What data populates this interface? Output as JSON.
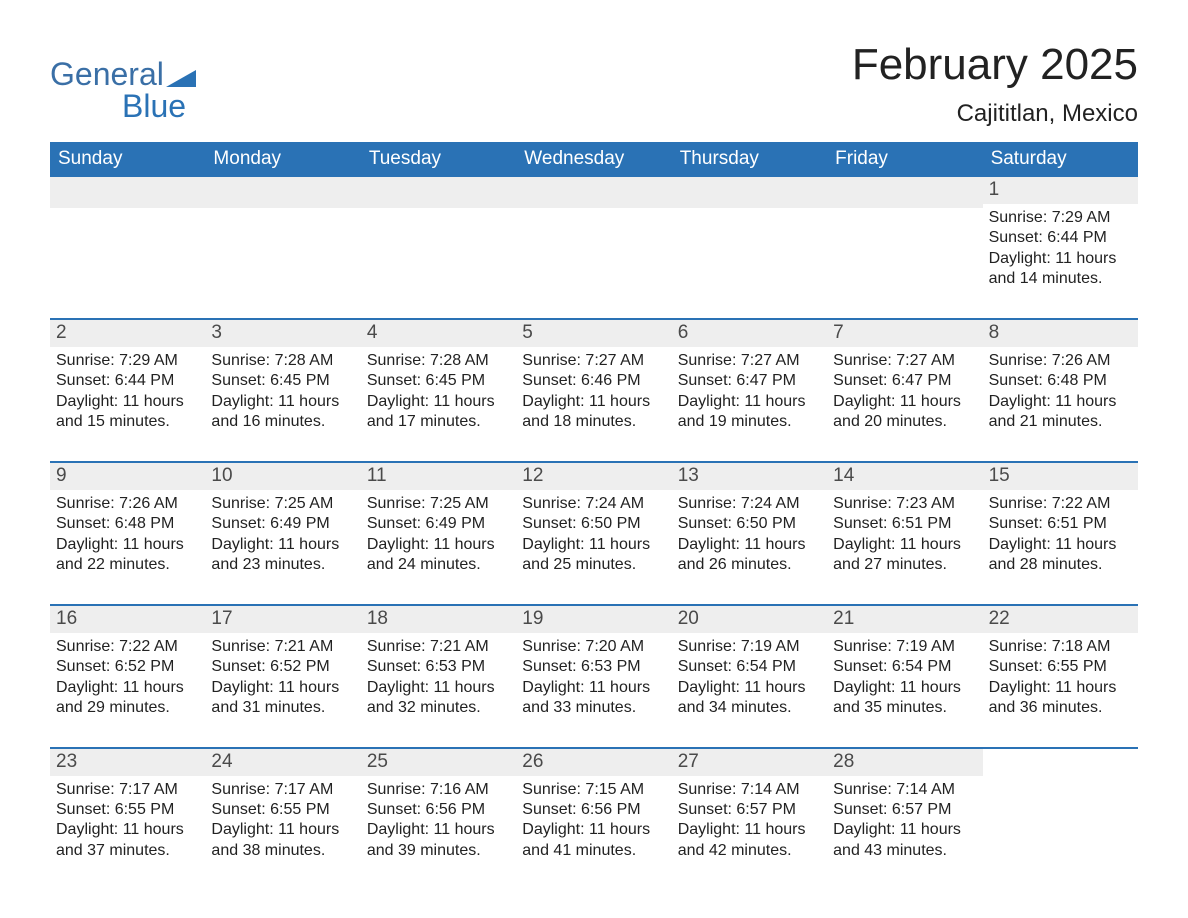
{
  "logo": {
    "general_text": "General",
    "blue_text": "Blue",
    "triangle_fill": "#2a72b5"
  },
  "title": "February 2025",
  "location": "Cajititlan, Mexico",
  "colors": {
    "header_bg": "#2a72b5",
    "header_text": "#ffffff",
    "strip_bg": "#eeeeee",
    "row_border": "#2a72b5",
    "body_text": "#222222",
    "title_text": "#222222"
  },
  "weekdays": [
    "Sunday",
    "Monday",
    "Tuesday",
    "Wednesday",
    "Thursday",
    "Friday",
    "Saturday"
  ],
  "weeks": [
    [
      {
        "empty": true
      },
      {
        "empty": true
      },
      {
        "empty": true
      },
      {
        "empty": true
      },
      {
        "empty": true
      },
      {
        "empty": true
      },
      {
        "day": 1,
        "sunrise": "7:29 AM",
        "sunset": "6:44 PM",
        "daylight": "11 hours and 14 minutes."
      }
    ],
    [
      {
        "day": 2,
        "sunrise": "7:29 AM",
        "sunset": "6:44 PM",
        "daylight": "11 hours and 15 minutes."
      },
      {
        "day": 3,
        "sunrise": "7:28 AM",
        "sunset": "6:45 PM",
        "daylight": "11 hours and 16 minutes."
      },
      {
        "day": 4,
        "sunrise": "7:28 AM",
        "sunset": "6:45 PM",
        "daylight": "11 hours and 17 minutes."
      },
      {
        "day": 5,
        "sunrise": "7:27 AM",
        "sunset": "6:46 PM",
        "daylight": "11 hours and 18 minutes."
      },
      {
        "day": 6,
        "sunrise": "7:27 AM",
        "sunset": "6:47 PM",
        "daylight": "11 hours and 19 minutes."
      },
      {
        "day": 7,
        "sunrise": "7:27 AM",
        "sunset": "6:47 PM",
        "daylight": "11 hours and 20 minutes."
      },
      {
        "day": 8,
        "sunrise": "7:26 AM",
        "sunset": "6:48 PM",
        "daylight": "11 hours and 21 minutes."
      }
    ],
    [
      {
        "day": 9,
        "sunrise": "7:26 AM",
        "sunset": "6:48 PM",
        "daylight": "11 hours and 22 minutes."
      },
      {
        "day": 10,
        "sunrise": "7:25 AM",
        "sunset": "6:49 PM",
        "daylight": "11 hours and 23 minutes."
      },
      {
        "day": 11,
        "sunrise": "7:25 AM",
        "sunset": "6:49 PM",
        "daylight": "11 hours and 24 minutes."
      },
      {
        "day": 12,
        "sunrise": "7:24 AM",
        "sunset": "6:50 PM",
        "daylight": "11 hours and 25 minutes."
      },
      {
        "day": 13,
        "sunrise": "7:24 AM",
        "sunset": "6:50 PM",
        "daylight": "11 hours and 26 minutes."
      },
      {
        "day": 14,
        "sunrise": "7:23 AM",
        "sunset": "6:51 PM",
        "daylight": "11 hours and 27 minutes."
      },
      {
        "day": 15,
        "sunrise": "7:22 AM",
        "sunset": "6:51 PM",
        "daylight": "11 hours and 28 minutes."
      }
    ],
    [
      {
        "day": 16,
        "sunrise": "7:22 AM",
        "sunset": "6:52 PM",
        "daylight": "11 hours and 29 minutes."
      },
      {
        "day": 17,
        "sunrise": "7:21 AM",
        "sunset": "6:52 PM",
        "daylight": "11 hours and 31 minutes."
      },
      {
        "day": 18,
        "sunrise": "7:21 AM",
        "sunset": "6:53 PM",
        "daylight": "11 hours and 32 minutes."
      },
      {
        "day": 19,
        "sunrise": "7:20 AM",
        "sunset": "6:53 PM",
        "daylight": "11 hours and 33 minutes."
      },
      {
        "day": 20,
        "sunrise": "7:19 AM",
        "sunset": "6:54 PM",
        "daylight": "11 hours and 34 minutes."
      },
      {
        "day": 21,
        "sunrise": "7:19 AM",
        "sunset": "6:54 PM",
        "daylight": "11 hours and 35 minutes."
      },
      {
        "day": 22,
        "sunrise": "7:18 AM",
        "sunset": "6:55 PM",
        "daylight": "11 hours and 36 minutes."
      }
    ],
    [
      {
        "day": 23,
        "sunrise": "7:17 AM",
        "sunset": "6:55 PM",
        "daylight": "11 hours and 37 minutes."
      },
      {
        "day": 24,
        "sunrise": "7:17 AM",
        "sunset": "6:55 PM",
        "daylight": "11 hours and 38 minutes."
      },
      {
        "day": 25,
        "sunrise": "7:16 AM",
        "sunset": "6:56 PM",
        "daylight": "11 hours and 39 minutes."
      },
      {
        "day": 26,
        "sunrise": "7:15 AM",
        "sunset": "6:56 PM",
        "daylight": "11 hours and 41 minutes."
      },
      {
        "day": 27,
        "sunrise": "7:14 AM",
        "sunset": "6:57 PM",
        "daylight": "11 hours and 42 minutes."
      },
      {
        "day": 28,
        "sunrise": "7:14 AM",
        "sunset": "6:57 PM",
        "daylight": "11 hours and 43 minutes."
      },
      {
        "empty": true,
        "no_strip": true
      }
    ]
  ],
  "labels": {
    "sunrise": "Sunrise: ",
    "sunset": "Sunset: ",
    "daylight": "Daylight: "
  }
}
